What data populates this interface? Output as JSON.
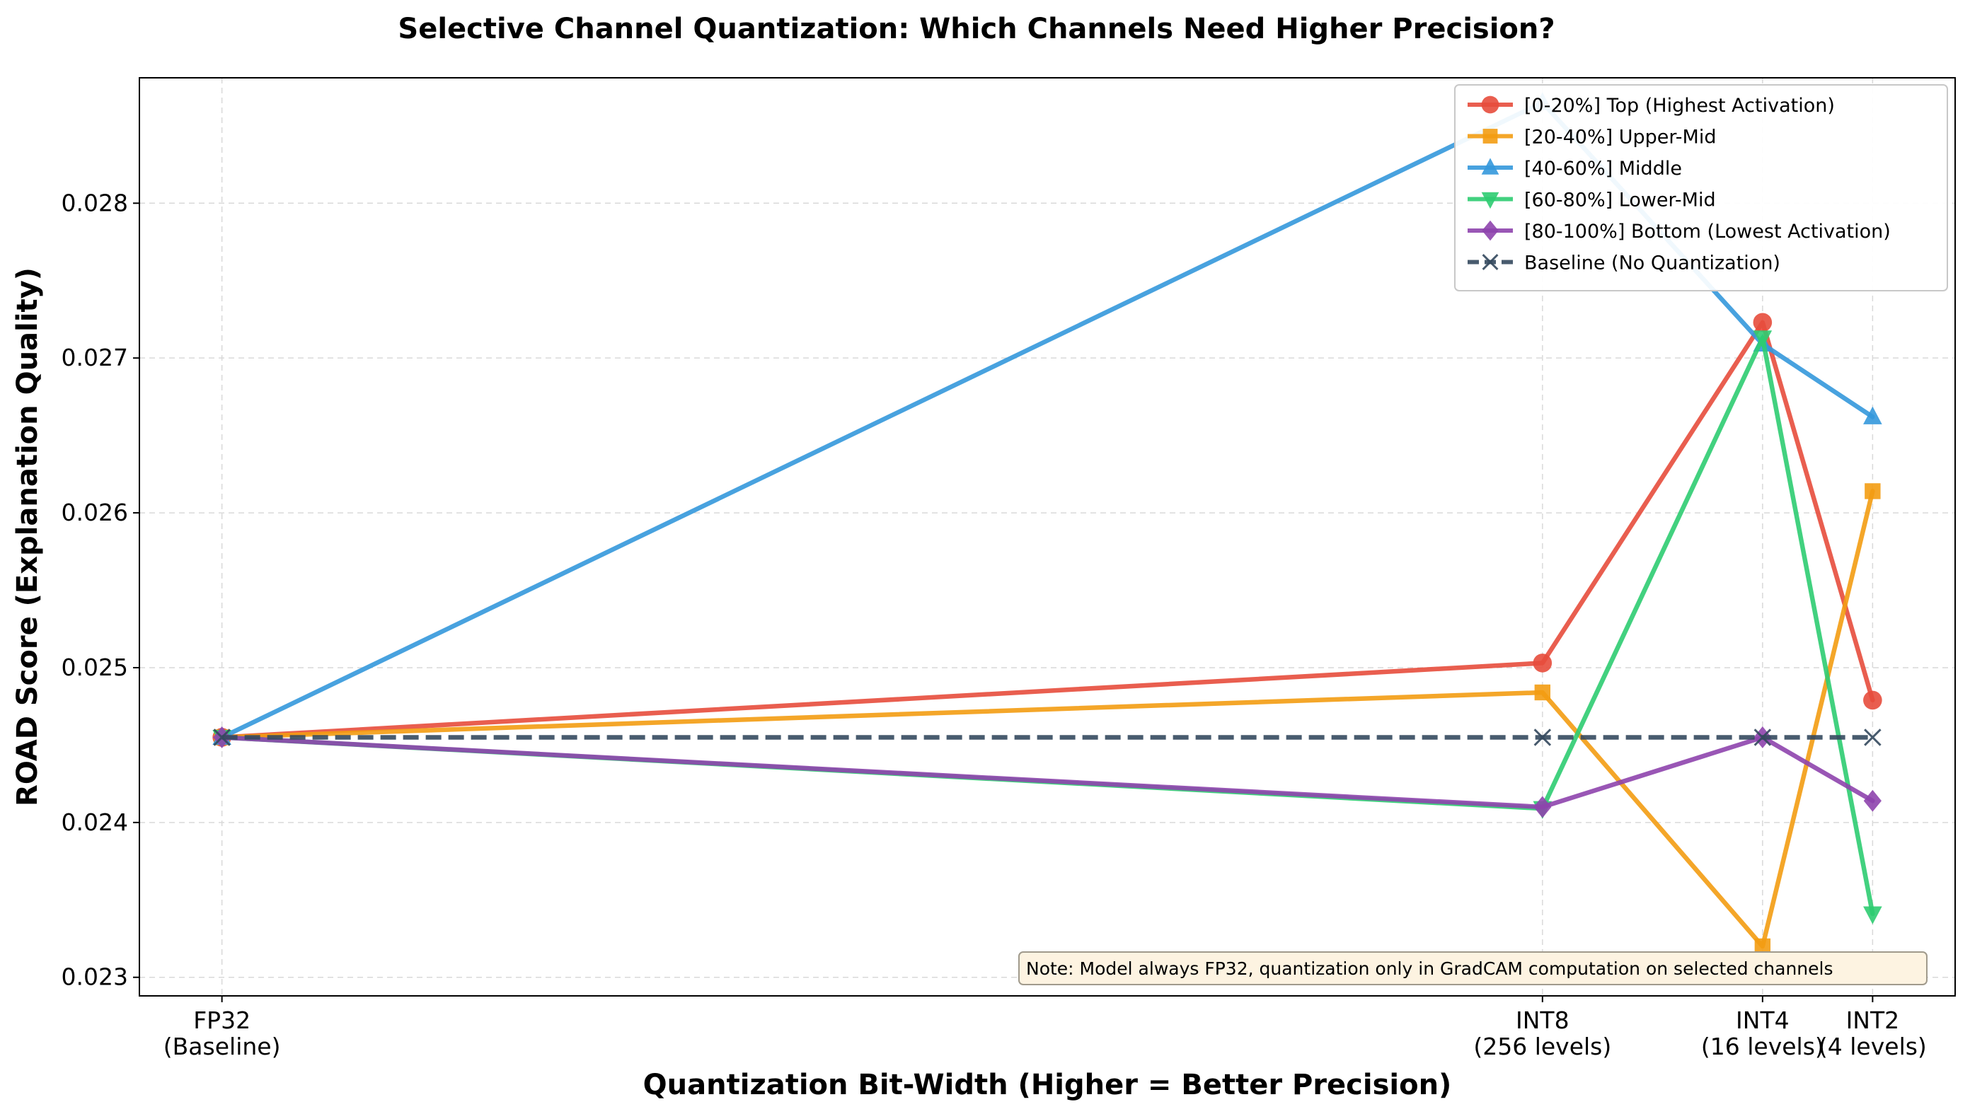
{
  "chart_data": {
    "type": "line",
    "title": "Selective Channel Quantization: Which Channels Need Higher Precision?",
    "xlabel": "Quantization Bit-Width (Higher = Better Precision)",
    "ylabel": "ROAD Score (Explanation Quality)",
    "x_ticks": [
      {
        "x": 32,
        "lines": [
          "FP32",
          "(Baseline)"
        ]
      },
      {
        "x": 8,
        "lines": [
          "INT8",
          "(256 levels)"
        ]
      },
      {
        "x": 4,
        "lines": [
          "INT4",
          "(16 levels)"
        ]
      },
      {
        "x": 2,
        "lines": [
          "INT2",
          "(4 levels)"
        ]
      }
    ],
    "x_inverted": true,
    "xlim": [
      33.5,
      0.5
    ],
    "ylim": [
      0.02288,
      0.02881
    ],
    "y_ticks": [
      0.023,
      0.024,
      0.025,
      0.026,
      0.027,
      0.028
    ],
    "y_tick_labels": [
      "0.023",
      "0.024",
      "0.025",
      "0.026",
      "0.027",
      "0.028"
    ],
    "grid": true,
    "legend_position": "top-right",
    "x": [
      32,
      8,
      4,
      2
    ],
    "series": [
      {
        "name": "[0-20%] Top (Highest Activation)",
        "color": "#e74c3c",
        "marker": "circle",
        "dash": false,
        "values": [
          0.02455,
          0.02503,
          0.02723,
          0.02479
        ]
      },
      {
        "name": "[20-40%] Upper-Mid",
        "color": "#f39c12",
        "marker": "square",
        "dash": false,
        "values": [
          0.02455,
          0.02484,
          0.0232,
          0.02614
        ]
      },
      {
        "name": "[40-60%] Middle",
        "color": "#3498db",
        "marker": "triangle-up",
        "dash": false,
        "values": [
          0.02455,
          0.02865,
          0.02709,
          0.02662
        ]
      },
      {
        "name": "[60-80%] Lower-Mid",
        "color": "#2ecc71",
        "marker": "triangle-down",
        "dash": false,
        "values": [
          0.02455,
          0.02409,
          0.02713,
          0.02341
        ]
      },
      {
        "name": "[80-100%] Bottom (Lowest Activation)",
        "color": "#8e44ad",
        "marker": "diamond",
        "dash": false,
        "values": [
          0.02455,
          0.0241,
          0.02455,
          0.02414
        ]
      },
      {
        "name": "Baseline (No Quantization)",
        "color": "#34495e",
        "marker": "x",
        "dash": true,
        "values": [
          0.02455,
          0.02455,
          0.02455,
          0.02455
        ]
      }
    ],
    "annotation": "Note: Model always FP32, quantization only in GradCAM computation on selected channels"
  }
}
